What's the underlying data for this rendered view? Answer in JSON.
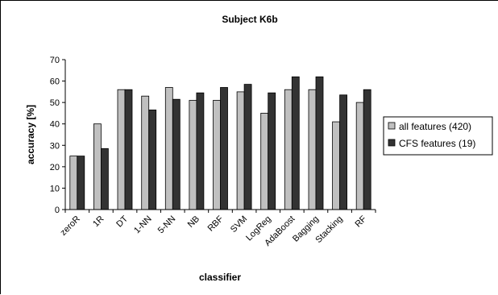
{
  "chart_data": {
    "type": "bar",
    "title": "Subject K6b",
    "xlabel": "classifier",
    "ylabel": "accuracy [%]",
    "ylim": [
      0,
      70
    ],
    "yticks": [
      0,
      10,
      20,
      30,
      40,
      50,
      60,
      70
    ],
    "grid": false,
    "legend_position": "right",
    "categories": [
      "zeroR",
      "1R",
      "DT",
      "1-NN",
      "5-NN",
      "NB",
      "RBF",
      "SVM",
      "LogReg",
      "AdaBoost",
      "Bagging",
      "Stacking",
      "RF"
    ],
    "series": [
      {
        "name": "all features (420)",
        "color": "#c0c0c0",
        "values": [
          25,
          40,
          56,
          53,
          57,
          51,
          51,
          55,
          45,
          56,
          56,
          41,
          50
        ]
      },
      {
        "name": "CFS features (19)",
        "color": "#333333",
        "values": [
          25,
          28.5,
          56,
          46.5,
          51.5,
          54.5,
          57,
          58.5,
          54.5,
          62,
          62,
          53.5,
          56
        ]
      }
    ]
  }
}
